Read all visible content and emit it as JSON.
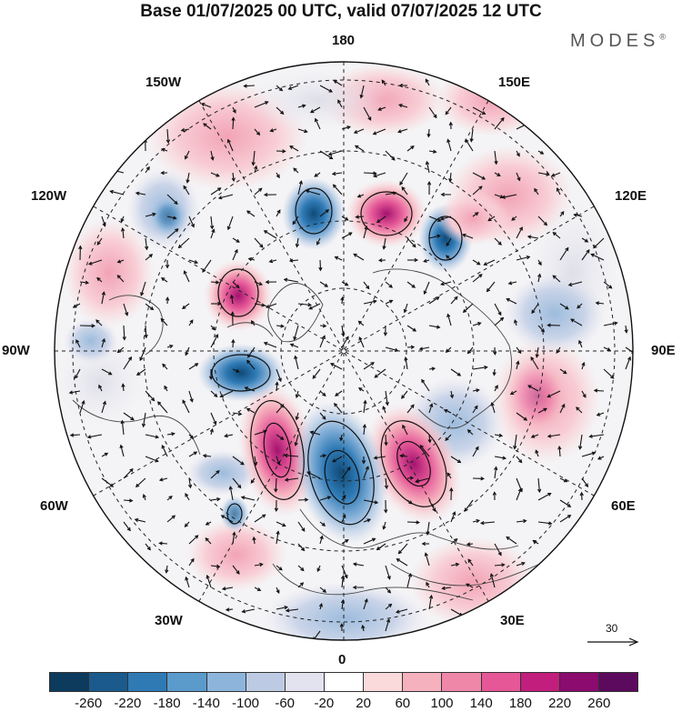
{
  "title": "Base 01/07/2025 00 UTC, valid 07/07/2025 12 UTC",
  "brand": "MODES",
  "brand_mark": "®",
  "longitude_labels": {
    "top": "180",
    "bottom": "0",
    "left": "90W",
    "right": "90E",
    "upper_left_1": "150W",
    "upper_left_2": "120W",
    "upper_right_1": "150E",
    "upper_right_2": "120E",
    "lower_left_1": "60W",
    "lower_left_2": "30W",
    "lower_right_1": "60E",
    "lower_right_2": "30E"
  },
  "reference_vector": "30",
  "colorbar": {
    "colors": [
      "#0d3b5e",
      "#1a5a8c",
      "#2f7ab5",
      "#5a9bcc",
      "#8db5db",
      "#bccbe3",
      "#e3e2ef",
      "#ffffff",
      "#fadada",
      "#f5b1bd",
      "#ef87a8",
      "#e55797",
      "#c21e7d",
      "#8b0b6e",
      "#5c0a5e"
    ],
    "ticks": [
      "-260",
      "-220",
      "-180",
      "-140",
      "-100",
      "-60",
      "-20",
      "20",
      "60",
      "100",
      "140",
      "180",
      "220",
      "260"
    ]
  }
}
